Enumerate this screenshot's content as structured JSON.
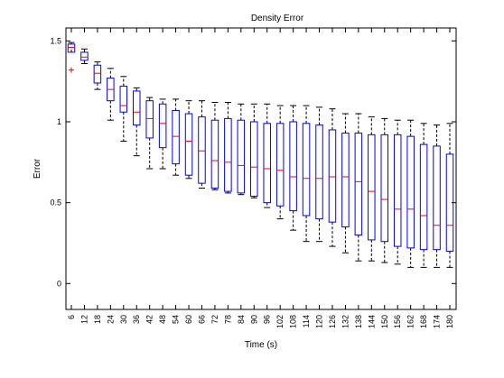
{
  "chart_data": {
    "type": "boxplot",
    "title": "Density Error",
    "xlabel": "Time (s)",
    "ylabel": "Error",
    "ylim": [
      -0.16,
      1.58
    ],
    "yticks": [
      0,
      0.5,
      1,
      1.5
    ],
    "categories": [
      "6",
      "12",
      "18",
      "24",
      "30",
      "36",
      "42",
      "48",
      "54",
      "60",
      "66",
      "72",
      "78",
      "84",
      "90",
      "96",
      "102",
      "108",
      "114",
      "120",
      "126",
      "132",
      "138",
      "144",
      "150",
      "156",
      "162",
      "168",
      "174",
      "180"
    ],
    "boxes": [
      {
        "lw": 1.46,
        "q1": 1.43,
        "median": 1.46,
        "q3": 1.48,
        "uw": 1.49,
        "outliers": [
          1.32
        ]
      },
      {
        "lw": 1.36,
        "q1": 1.38,
        "median": 1.4,
        "q3": 1.43,
        "uw": 1.45,
        "outliers": []
      },
      {
        "lw": 1.2,
        "q1": 1.24,
        "median": 1.3,
        "q3": 1.35,
        "uw": 1.37,
        "outliers": []
      },
      {
        "lw": 1.01,
        "q1": 1.13,
        "median": 1.2,
        "q3": 1.27,
        "uw": 1.33,
        "outliers": []
      },
      {
        "lw": 0.88,
        "q1": 1.06,
        "median": 1.1,
        "q3": 1.22,
        "uw": 1.28,
        "outliers": []
      },
      {
        "lw": 0.79,
        "q1": 0.98,
        "median": 1.06,
        "q3": 1.19,
        "uw": 1.21,
        "outliers": []
      },
      {
        "lw": 0.71,
        "q1": 0.9,
        "median": 1.02,
        "q3": 1.13,
        "uw": 1.15,
        "outliers": []
      },
      {
        "lw": 0.71,
        "q1": 0.84,
        "median": 0.99,
        "q3": 1.11,
        "uw": 1.14,
        "outliers": []
      },
      {
        "lw": 0.67,
        "q1": 0.74,
        "median": 0.91,
        "q3": 1.07,
        "uw": 1.14,
        "outliers": []
      },
      {
        "lw": 0.65,
        "q1": 0.67,
        "median": 0.88,
        "q3": 1.05,
        "uw": 1.13,
        "outliers": []
      },
      {
        "lw": 0.59,
        "q1": 0.62,
        "median": 0.82,
        "q3": 1.03,
        "uw": 1.13,
        "outliers": []
      },
      {
        "lw": 0.58,
        "q1": 0.59,
        "median": 0.76,
        "q3": 1.01,
        "uw": 1.12,
        "outliers": []
      },
      {
        "lw": 0.56,
        "q1": 0.57,
        "median": 0.75,
        "q3": 1.02,
        "uw": 1.12,
        "outliers": []
      },
      {
        "lw": 0.55,
        "q1": 0.56,
        "median": 0.73,
        "q3": 1.01,
        "uw": 1.11,
        "outliers": []
      },
      {
        "lw": 0.53,
        "q1": 0.54,
        "median": 0.72,
        "q3": 1.0,
        "uw": 1.11,
        "outliers": []
      },
      {
        "lw": 0.47,
        "q1": 0.5,
        "median": 0.71,
        "q3": 0.99,
        "uw": 1.11,
        "outliers": []
      },
      {
        "lw": 0.4,
        "q1": 0.48,
        "median": 0.7,
        "q3": 0.99,
        "uw": 1.1,
        "outliers": []
      },
      {
        "lw": 0.33,
        "q1": 0.45,
        "median": 0.66,
        "q3": 1.0,
        "uw": 1.1,
        "outliers": []
      },
      {
        "lw": 0.26,
        "q1": 0.42,
        "median": 0.65,
        "q3": 0.99,
        "uw": 1.1,
        "outliers": []
      },
      {
        "lw": 0.26,
        "q1": 0.4,
        "median": 0.65,
        "q3": 0.98,
        "uw": 1.09,
        "outliers": []
      },
      {
        "lw": 0.23,
        "q1": 0.38,
        "median": 0.66,
        "q3": 0.95,
        "uw": 1.08,
        "outliers": []
      },
      {
        "lw": 0.19,
        "q1": 0.35,
        "median": 0.66,
        "q3": 0.93,
        "uw": 1.05,
        "outliers": []
      },
      {
        "lw": 0.14,
        "q1": 0.3,
        "median": 0.63,
        "q3": 0.93,
        "uw": 1.05,
        "outliers": []
      },
      {
        "lw": 0.14,
        "q1": 0.27,
        "median": 0.57,
        "q3": 0.92,
        "uw": 1.03,
        "outliers": []
      },
      {
        "lw": 0.13,
        "q1": 0.26,
        "median": 0.52,
        "q3": 0.92,
        "uw": 1.02,
        "outliers": []
      },
      {
        "lw": 0.12,
        "q1": 0.23,
        "median": 0.46,
        "q3": 0.92,
        "uw": 1.01,
        "outliers": []
      },
      {
        "lw": 0.1,
        "q1": 0.22,
        "median": 0.46,
        "q3": 0.91,
        "uw": 1.01,
        "outliers": []
      },
      {
        "lw": 0.1,
        "q1": 0.21,
        "median": 0.42,
        "q3": 0.86,
        "uw": 0.99,
        "outliers": []
      },
      {
        "lw": 0.1,
        "q1": 0.21,
        "median": 0.36,
        "q3": 0.85,
        "uw": 0.98,
        "outliers": []
      },
      {
        "lw": 0.1,
        "q1": 0.2,
        "median": 0.36,
        "q3": 0.8,
        "uw": 0.99,
        "outliers": []
      }
    ],
    "grid": false,
    "colors": {
      "box": "#0000ff",
      "median": "#ff0000",
      "whisker": "#000000",
      "outlier": "#ff0000",
      "axis": "#000000"
    }
  }
}
